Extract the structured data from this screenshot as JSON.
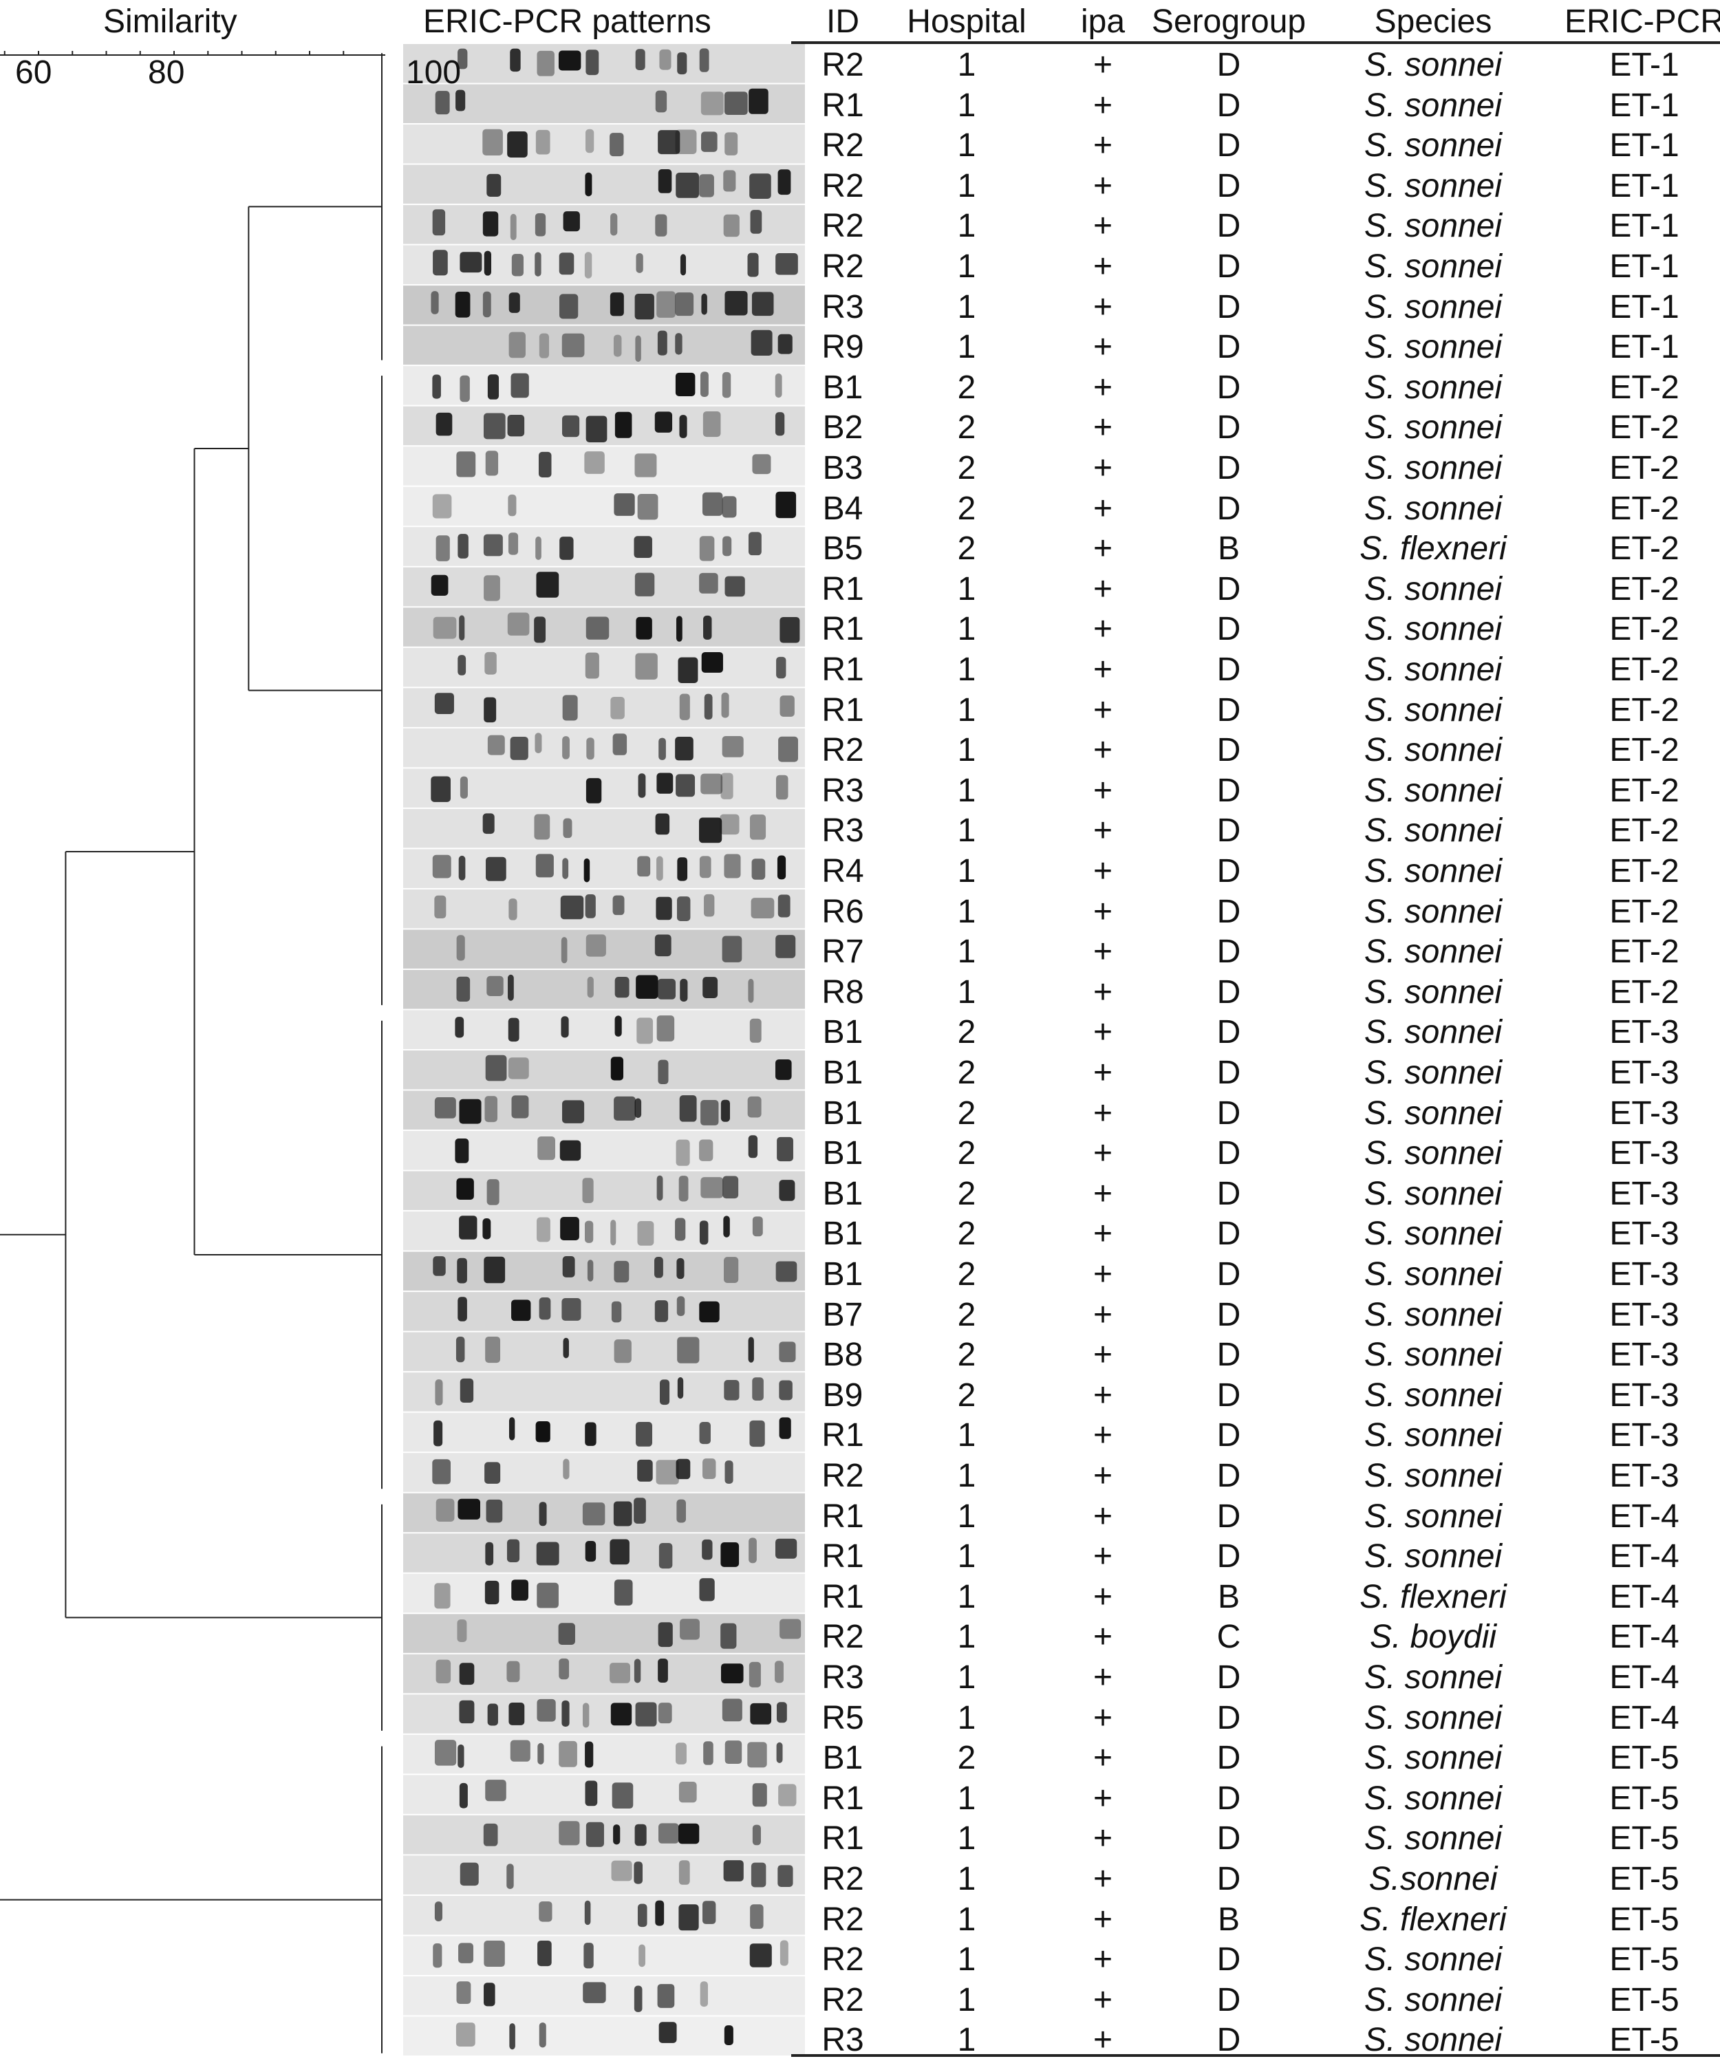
{
  "similarity": {
    "title": "Similarity",
    "scale_labels": [
      "60",
      "80",
      "100"
    ]
  },
  "gel": {
    "title": "ERIC-PCR patterns"
  },
  "table": {
    "headers": [
      "ID",
      "Hospital",
      "ipa",
      "Serogroup",
      "Species",
      "ERIC-PCR"
    ],
    "rows": [
      [
        "R2",
        "1",
        "+",
        "D",
        "S. sonnei",
        "ET-1"
      ],
      [
        "R1",
        "1",
        "+",
        "D",
        "S. sonnei",
        "ET-1"
      ],
      [
        "R2",
        "1",
        "+",
        "D",
        "S. sonnei",
        "ET-1"
      ],
      [
        "R2",
        "1",
        "+",
        "D",
        "S. sonnei",
        "ET-1"
      ],
      [
        "R2",
        "1",
        "+",
        "D",
        "S. sonnei",
        "ET-1"
      ],
      [
        "R2",
        "1",
        "+",
        "D",
        "S. sonnei",
        "ET-1"
      ],
      [
        "R3",
        "1",
        "+",
        "D",
        "S. sonnei",
        "ET-1"
      ],
      [
        "R9",
        "1",
        "+",
        "D",
        "S. sonnei",
        "ET-1"
      ],
      [
        "B1",
        "2",
        "+",
        "D",
        "S. sonnei",
        "ET-2"
      ],
      [
        "B2",
        "2",
        "+",
        "D",
        "S. sonnei",
        "ET-2"
      ],
      [
        "B3",
        "2",
        "+",
        "D",
        "S. sonnei",
        "ET-2"
      ],
      [
        "B4",
        "2",
        "+",
        "D",
        "S. sonnei",
        "ET-2"
      ],
      [
        "B5",
        "2",
        "+",
        "B",
        "S. flexneri",
        "ET-2"
      ],
      [
        "R1",
        "1",
        "+",
        "D",
        "S. sonnei",
        "ET-2"
      ],
      [
        "R1",
        "1",
        "+",
        "D",
        "S. sonnei",
        "ET-2"
      ],
      [
        "R1",
        "1",
        "+",
        "D",
        "S. sonnei",
        "ET-2"
      ],
      [
        "R1",
        "1",
        "+",
        "D",
        "S. sonnei",
        "ET-2"
      ],
      [
        "R2",
        "1",
        "+",
        "D",
        "S. sonnei",
        "ET-2"
      ],
      [
        "R3",
        "1",
        "+",
        "D",
        "S. sonnei",
        "ET-2"
      ],
      [
        "R3",
        "1",
        "+",
        "D",
        "S. sonnei",
        "ET-2"
      ],
      [
        "R4",
        "1",
        "+",
        "D",
        "S. sonnei",
        "ET-2"
      ],
      [
        "R6",
        "1",
        "+",
        "D",
        "S. sonnei",
        "ET-2"
      ],
      [
        "R7",
        "1",
        "+",
        "D",
        "S. sonnei",
        "ET-2"
      ],
      [
        "R8",
        "1",
        "+",
        "D",
        "S. sonnei",
        "ET-2"
      ],
      [
        "B1",
        "2",
        "+",
        "D",
        "S. sonnei",
        "ET-3"
      ],
      [
        "B1",
        "2",
        "+",
        "D",
        "S. sonnei",
        "ET-3"
      ],
      [
        "B1",
        "2",
        "+",
        "D",
        "S. sonnei",
        "ET-3"
      ],
      [
        "B1",
        "2",
        "+",
        "D",
        "S. sonnei",
        "ET-3"
      ],
      [
        "B1",
        "2",
        "+",
        "D",
        "S. sonnei",
        "ET-3"
      ],
      [
        "B1",
        "2",
        "+",
        "D",
        "S. sonnei",
        "ET-3"
      ],
      [
        "B1",
        "2",
        "+",
        "D",
        "S. sonnei",
        "ET-3"
      ],
      [
        "B7",
        "2",
        "+",
        "D",
        "S. sonnei",
        "ET-3"
      ],
      [
        "B8",
        "2",
        "+",
        "D",
        "S. sonnei",
        "ET-3"
      ],
      [
        "B9",
        "2",
        "+",
        "D",
        "S. sonnei",
        "ET-3"
      ],
      [
        "R1",
        "1",
        "+",
        "D",
        "S. sonnei",
        "ET-3"
      ],
      [
        "R2",
        "1",
        "+",
        "D",
        "S. sonnei",
        "ET-3"
      ],
      [
        "R1",
        "1",
        "+",
        "D",
        "S. sonnei",
        "ET-4"
      ],
      [
        "R1",
        "1",
        "+",
        "D",
        "S. sonnei",
        "ET-4"
      ],
      [
        "R1",
        "1",
        "+",
        "B",
        "S. flexneri",
        "ET-4"
      ],
      [
        "R2",
        "1",
        "+",
        "C",
        "S. boydii",
        "ET-4"
      ],
      [
        "R3",
        "1",
        "+",
        "D",
        "S. sonnei",
        "ET-4"
      ],
      [
        "R5",
        "1",
        "+",
        "D",
        "S. sonnei",
        "ET-4"
      ],
      [
        "B1",
        "2",
        "+",
        "D",
        "S. sonnei",
        "ET-5"
      ],
      [
        "R1",
        "1",
        "+",
        "D",
        "S. sonnei",
        "ET-5"
      ],
      [
        "R1",
        "1",
        "+",
        "D",
        "S. sonnei",
        "ET-5"
      ],
      [
        "R2",
        "1",
        "+",
        "D",
        "S.sonnei",
        "ET-5"
      ],
      [
        "R2",
        "1",
        "+",
        "B",
        "S. flexneri",
        "ET-5"
      ],
      [
        "R2",
        "1",
        "+",
        "D",
        "S. sonnei",
        "ET-5"
      ],
      [
        "R2",
        "1",
        "+",
        "D",
        "S. sonnei",
        "ET-5"
      ],
      [
        "R3",
        "1",
        "+",
        "D",
        "S. sonnei",
        "ET-5"
      ]
    ]
  },
  "dendrogram": {
    "clusters": [
      {
        "name": "ET-1",
        "first_row": 0,
        "last_row": 7
      },
      {
        "name": "ET-2",
        "first_row": 8,
        "last_row": 23
      },
      {
        "name": "ET-3",
        "first_row": 24,
        "last_row": 35
      },
      {
        "name": "ET-4",
        "first_row": 36,
        "last_row": 41
      },
      {
        "name": "ET-5",
        "first_row": 42,
        "last_row": 49
      }
    ],
    "merges": [
      {
        "left": "ET-1",
        "right": "ET-2",
        "similarity": 91
      },
      {
        "left": "ET-1/ET-2",
        "right": "ET-3",
        "similarity": 83
      },
      {
        "left": "ET-1/ET-2/ET-3",
        "right": "ET-4",
        "similarity": 64
      },
      {
        "left": "ET-1/ET-2/ET-3/ET-4",
        "right": "ET-5",
        "similarity": 54
      }
    ]
  },
  "colors": {
    "line": "#222222",
    "band": "#111111",
    "lane_background": "#e8e8e8"
  }
}
